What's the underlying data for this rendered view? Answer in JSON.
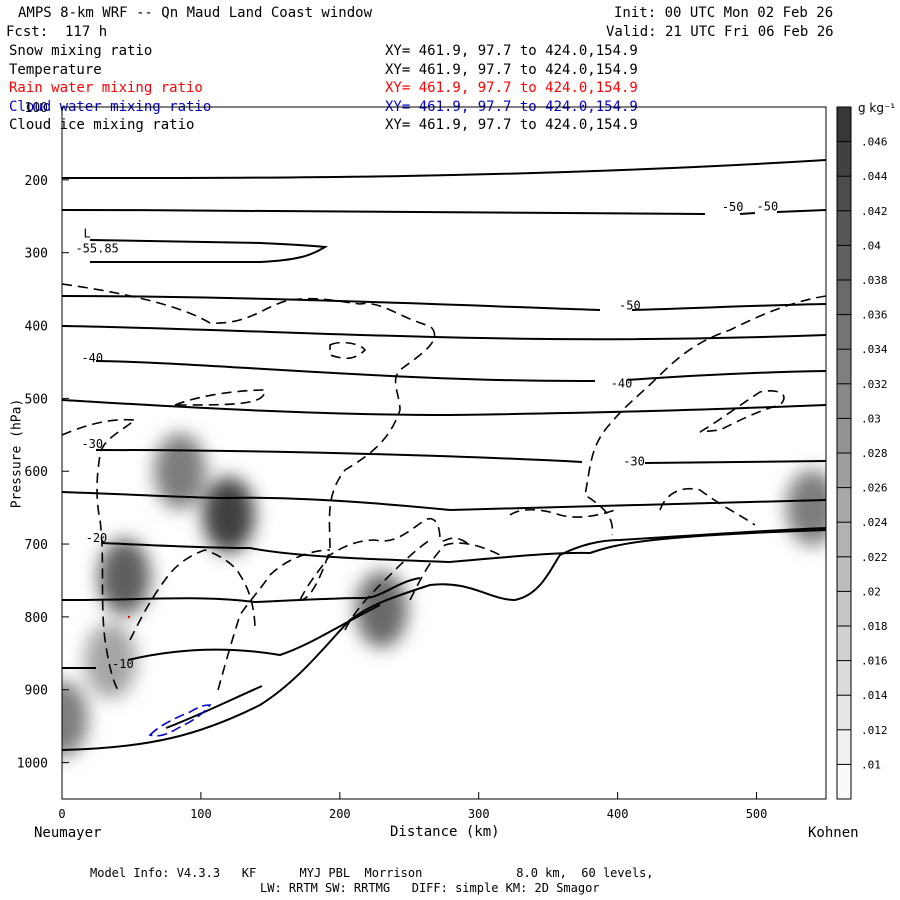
{
  "header": {
    "model_title": "AMPS 8-km WRF -- Qn Maud Land Coast window",
    "init_time": "Init: 00 UTC Mon 02 Feb 26",
    "forecast_hour": "Fcst:  117 h",
    "valid_time": "Valid: 21 UTC Fri 06 Feb 26"
  },
  "fields": [
    {
      "name": "Snow mixing ratio",
      "xy": "XY= 461.9, 97.7 to 424.0,154.9",
      "color": "#000000"
    },
    {
      "name": "Temperature",
      "xy": "XY= 461.9, 97.7 to 424.0,154.9",
      "color": "#000000"
    },
    {
      "name": "Rain water mixing ratio",
      "xy": "XY= 461.9, 97.7 to 424.0,154.9",
      "color": "#ff0000"
    },
    {
      "name": "Cloud water mixing ratio",
      "xy": "XY= 461.9, 97.7 to 424.0,154.9",
      "color": "#0000cc"
    },
    {
      "name": "Cloud ice mixing ratio",
      "xy": "XY= 461.9, 97.7 to 424.0,154.9",
      "color": "#000000"
    }
  ],
  "footer": {
    "model_info": "Model Info: V4.3.3   KF      MYJ PBL  Morrison             8.0 km,  60 levels,",
    "physics_info": "LW: RRTM SW: RRTMG   DIFF: simple KM: 2D Smagor"
  },
  "chart_data": {
    "type": "cross-section",
    "xlabel": "Distance (km)",
    "ylabel": "Pressure (hPa)",
    "x_start_label": "Neumayer",
    "x_end_label": "Kohnen",
    "xlim": [
      0,
      550
    ],
    "ylim": [
      1050,
      100
    ],
    "x_ticks": [
      0,
      100,
      200,
      300,
      400,
      500
    ],
    "y_ticks": [
      100,
      200,
      300,
      400,
      500,
      600,
      700,
      800,
      900,
      1000
    ],
    "colorbar": {
      "unit": "g kg⁻¹",
      "ticks": [
        ".01",
        ".012",
        ".014",
        ".016",
        ".018",
        ".02",
        ".022",
        ".024",
        ".026",
        ".028",
        ".03",
        ".032",
        ".034",
        ".036",
        ".038",
        ".04",
        ".042",
        ".044",
        ".046"
      ],
      "range": [
        0.008,
        0.048
      ]
    },
    "temperature_contour_labels": [
      {
        "text": "-50",
        "x": 475,
        "p": 243
      },
      {
        "text": "-50",
        "x": 500,
        "p": 242
      },
      {
        "text": "-50",
        "x": 401,
        "p": 378
      },
      {
        "text": "-40",
        "x": 14,
        "p": 450
      },
      {
        "text": "-40",
        "x": 395,
        "p": 485
      },
      {
        "text": "-30",
        "x": 14,
        "p": 568
      },
      {
        "text": "-30",
        "x": 404,
        "p": 592
      },
      {
        "text": "-20",
        "x": 17,
        "p": 697
      },
      {
        "text": "-10",
        "x": 36,
        "p": 870
      }
    ],
    "low_marker": {
      "text": "L",
      "value": "-55.85",
      "x": 14,
      "p": 300
    },
    "snow_maxima": [
      {
        "x": 120,
        "p": 660,
        "g_kg": 0.042
      },
      {
        "x": 85,
        "p": 600,
        "g_kg": 0.03
      },
      {
        "x": 45,
        "p": 745,
        "g_kg": 0.036
      },
      {
        "x": 35,
        "p": 860,
        "g_kg": 0.022
      },
      {
        "x": 230,
        "p": 790,
        "g_kg": 0.034
      },
      {
        "x": 540,
        "p": 650,
        "g_kg": 0.03
      },
      {
        "x": 0,
        "p": 940,
        "g_kg": 0.03
      }
    ]
  }
}
